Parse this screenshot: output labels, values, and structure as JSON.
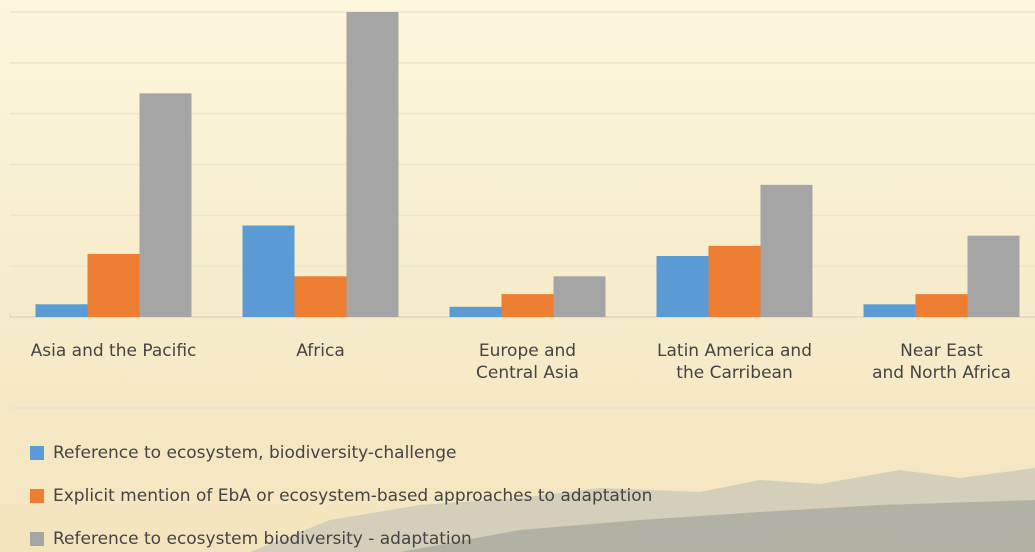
{
  "chart_data": {
    "type": "bar",
    "categories": [
      "Asia and the Pacific",
      "Africa",
      "Europe and\nCentral Asia",
      "Latin America and\nthe Carribean",
      "Near East\nand North Africa"
    ],
    "series": [
      {
        "name": "Reference to ecosystem, biodiversity-challenge",
        "color": "#5b9bd5",
        "values": [
          0.25,
          1.8,
          0.2,
          1.2,
          0.25
        ]
      },
      {
        "name": "Explicit mention of EbA or ecosystem-based approaches to adaptation",
        "color": "#ed7d31",
        "values": [
          1.24,
          0.8,
          0.45,
          1.4,
          0.45
        ]
      },
      {
        "name": "Reference to ecosystem biodiversity - adaptation",
        "color": "#a5a5a5",
        "values": [
          4.4,
          6.0,
          0.8,
          2.6,
          1.6
        ]
      }
    ],
    "ylim": [
      0,
      6
    ],
    "yticks": [
      0,
      1,
      2,
      3,
      4,
      5,
      6
    ],
    "grid": true
  }
}
